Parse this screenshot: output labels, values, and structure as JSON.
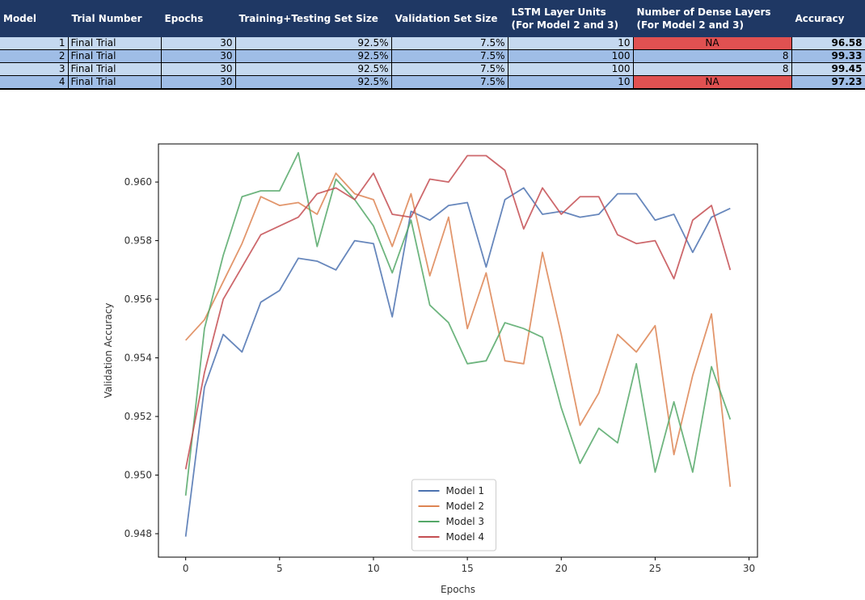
{
  "table": {
    "headers": [
      "Model",
      "Trial Number",
      "Epochs",
      "Training+Testing Set Size",
      "Validation Set Size",
      "LSTM Layer Units (For Model 2 and 3)",
      "Number of Dense Layers (For Model 2 and 3)",
      "Accuracy"
    ],
    "header_lines": [
      [
        "Model"
      ],
      [
        "Trial Number"
      ],
      [
        "Epochs"
      ],
      [
        "Training+Testing Set Size"
      ],
      [
        "Validation Set Size"
      ],
      [
        "LSTM Layer Units",
        "(For Model 2 and 3)"
      ],
      [
        "Number of Dense Layers",
        "(For Model 2 and 3)"
      ],
      [
        "Accuracy"
      ]
    ],
    "rows": [
      [
        "1",
        "Final Trial",
        "30",
        "92.5%",
        "7.5%",
        "10",
        "NA",
        "96.58"
      ],
      [
        "2",
        "Final Trial",
        "30",
        "92.5%",
        "7.5%",
        "100",
        "8",
        "99.33"
      ],
      [
        "3",
        "Final Trial",
        "30",
        "92.5%",
        "7.5%",
        "100",
        "8",
        "99.45"
      ],
      [
        "4",
        "Final Trial",
        "30",
        "92.5%",
        "7.5%",
        "10",
        "NA",
        "97.23"
      ]
    ],
    "colors": {
      "header_bg": "#1f3864",
      "row_light": "#c5d9f0",
      "row_dark": "#9fbde6",
      "na_bg": "#e05151"
    }
  },
  "chart_data": {
    "type": "line",
    "xlabel": "Epochs",
    "ylabel": "Validation Accuracy",
    "xlim": [
      -1.45,
      30.45
    ],
    "ylim": [
      0.9472,
      0.9613
    ],
    "xticks": [
      0,
      5,
      10,
      15,
      20,
      25,
      30
    ],
    "yticks": [
      0.948,
      0.95,
      0.952,
      0.954,
      0.956,
      0.958,
      0.96
    ],
    "ytick_labels": [
      "0.948",
      "0.950",
      "0.952",
      "0.954",
      "0.956",
      "0.958",
      "0.960"
    ],
    "grid": false,
    "legend_position": "lower center",
    "x": [
      0,
      1,
      2,
      3,
      4,
      5,
      6,
      7,
      8,
      9,
      10,
      11,
      12,
      13,
      14,
      15,
      16,
      17,
      18,
      19,
      20,
      21,
      22,
      23,
      24,
      25,
      26,
      27,
      28,
      29
    ],
    "series": [
      {
        "name": "Model 1",
        "color": "#4c72b0",
        "values": [
          0.9479,
          0.953,
          0.9548,
          0.9542,
          0.9559,
          0.9563,
          0.9574,
          0.9573,
          0.957,
          0.958,
          0.9579,
          0.9554,
          0.959,
          0.9587,
          0.9592,
          0.9593,
          0.9571,
          0.9594,
          0.9598,
          0.9589,
          0.959,
          0.9588,
          0.9589,
          0.9596,
          0.9596,
          0.9587,
          0.9589,
          0.9576,
          0.9588,
          0.9591
        ]
      },
      {
        "name": "Model 2",
        "color": "#dd8452",
        "values": [
          0.9546,
          0.9553,
          0.9566,
          0.9579,
          0.9595,
          0.9592,
          0.9593,
          0.9589,
          0.9603,
          0.9596,
          0.9594,
          0.9578,
          0.9596,
          0.9568,
          0.9588,
          0.955,
          0.9569,
          0.9539,
          0.9538,
          0.9576,
          0.9548,
          0.9517,
          0.9528,
          0.9548,
          0.9542,
          0.9551,
          0.9507,
          0.9534,
          0.9555,
          0.9496
        ]
      },
      {
        "name": "Model 3",
        "color": "#55a868",
        "values": [
          0.9493,
          0.955,
          0.9575,
          0.9595,
          0.9597,
          0.9597,
          0.961,
          0.9578,
          0.9601,
          0.9594,
          0.9585,
          0.9569,
          0.9587,
          0.9558,
          0.9552,
          0.9538,
          0.9539,
          0.9552,
          0.955,
          0.9547,
          0.9523,
          0.9504,
          0.9516,
          0.9511,
          0.9538,
          0.9501,
          0.9525,
          0.9501,
          0.9537,
          0.9519
        ]
      },
      {
        "name": "Model 4",
        "color": "#c44e52",
        "values": [
          0.9502,
          0.9535,
          0.956,
          0.9571,
          0.9582,
          0.9585,
          0.9588,
          0.9596,
          0.9598,
          0.9594,
          0.9603,
          0.9589,
          0.9588,
          0.9601,
          0.96,
          0.9609,
          0.9609,
          0.9604,
          0.9584,
          0.9598,
          0.9589,
          0.9595,
          0.9595,
          0.9582,
          0.9579,
          0.958,
          0.9567,
          0.9587,
          0.9592,
          0.957
        ]
      }
    ]
  }
}
